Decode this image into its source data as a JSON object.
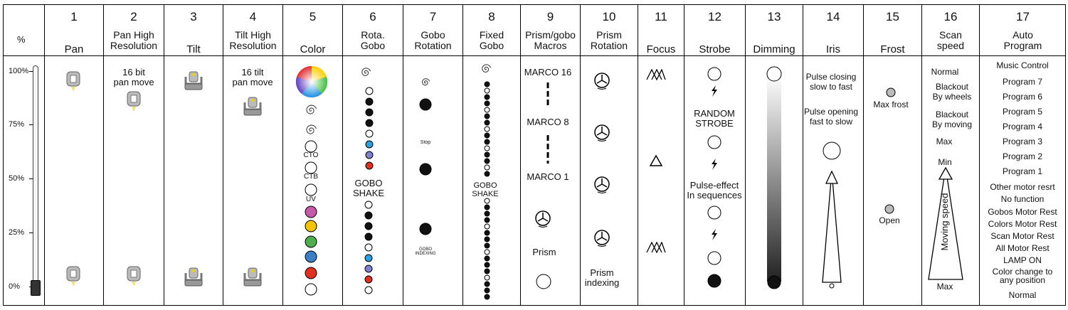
{
  "percent_header": "%",
  "percent_labels": [
    "100%",
    "75%",
    "50%",
    "25%",
    "0%"
  ],
  "channels": [
    {
      "number": "1",
      "name": "Pan"
    },
    {
      "number": "2",
      "name": "Pan High\nResolution"
    },
    {
      "number": "3",
      "name": "Tilt"
    },
    {
      "number": "4",
      "name": "Tilt High\nResolution"
    },
    {
      "number": "5",
      "name": "Color"
    },
    {
      "number": "6",
      "name": "Rota.\nGobo"
    },
    {
      "number": "7",
      "name": "Gobo\nRotation"
    },
    {
      "number": "8",
      "name": "Fixed\nGobo"
    },
    {
      "number": "9",
      "name": "Prism/gobo\nMacros"
    },
    {
      "number": "10",
      "name": "Prism\nRotation"
    },
    {
      "number": "11",
      "name": "Focus"
    },
    {
      "number": "12",
      "name": "Strobe"
    },
    {
      "number": "13",
      "name": "Dimming"
    },
    {
      "number": "14",
      "name": "Iris"
    },
    {
      "number": "15",
      "name": "Frost"
    },
    {
      "number": "16",
      "name": "Scan\nspeed"
    },
    {
      "number": "17",
      "name": "Auto\nProgram"
    }
  ],
  "pan_hr_text": "16 bit\npan move",
  "tilt_hr_text": "16 tilt\npan move",
  "color_labels": {
    "cto": "CTO",
    "ctb": "CTB",
    "uv": "UV"
  },
  "color_swatches": [
    "#c45aa8",
    "#f2c300",
    "#4cae4c",
    "#3c7fc4",
    "#e03020"
  ],
  "gobo_shake": "GOBO\nSHAKE",
  "gobo_stop": "Stop",
  "gobo_indexing": "GOBO\nINDEXING",
  "fixed_gobo_shake": "GOBO\nSHAKE",
  "macros": {
    "m16": "MARCO 16",
    "m8": "MARCO 8",
    "m1": "MARCO 1",
    "prism": "Prism"
  },
  "prism_indexing": "Prism\nindexing",
  "strobe": {
    "random": "RANDOM\nSTROBE",
    "pulse": "Pulse-effect\nIn sequences"
  },
  "iris": {
    "closing": "Pulse closing\nslow to fast",
    "opening": "Pulse opening\nfast to slow"
  },
  "frost": {
    "max": "Max frost",
    "open": "Open"
  },
  "scan": {
    "normal": "Normal",
    "bw": "Blackout\nBy wheels",
    "bm": "Blackout\nBy moving",
    "max": "Max",
    "min": "Min",
    "moving": "Moving speed",
    "bottom": "Max"
  },
  "auto_program": [
    "Music Control",
    "Program 7",
    "Program 6",
    "Program 5",
    "Program 4",
    "Program 3",
    "Program 2",
    "Program 1",
    "Other motor resrt",
    "No function",
    "Gobos Motor Rest",
    "Colors Motor Rest",
    "Scan Motor Rest",
    "All Motor Rest",
    "LAMP ON",
    "Color change to\nany position",
    "Normal"
  ]
}
